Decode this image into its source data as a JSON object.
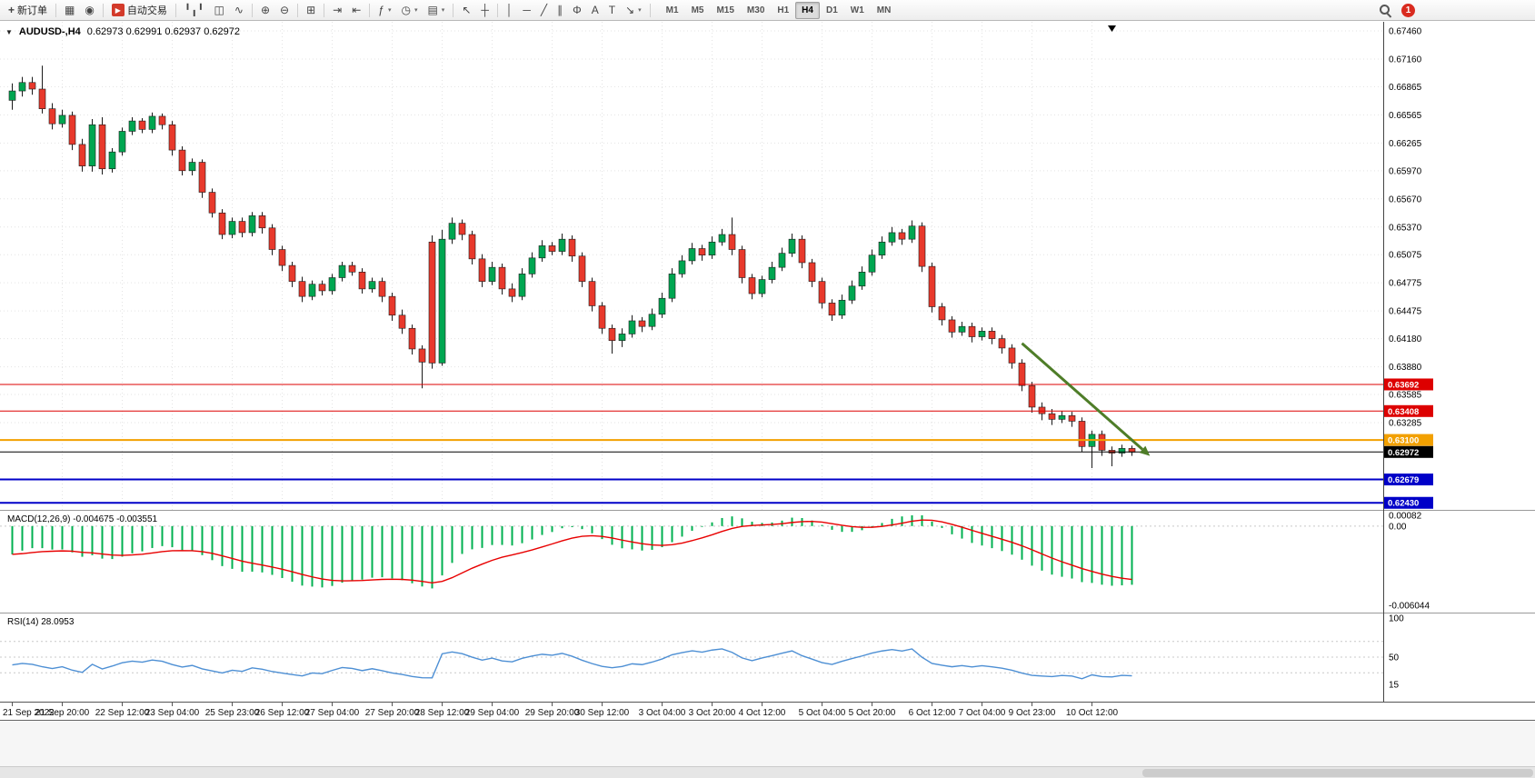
{
  "toolbar": {
    "new_order_label": "新订单",
    "autotrading_label": "自动交易",
    "badge_count": "1",
    "timeframes": [
      "M1",
      "M5",
      "M15",
      "M30",
      "H1",
      "H4",
      "D1",
      "W1",
      "MN"
    ],
    "active_timeframe": "H4",
    "groups": [
      [
        "bar-chart",
        "candlestick",
        "line-chart"
      ],
      [
        "zoom-in",
        "zoom-out"
      ],
      [
        "tile-windows"
      ],
      [
        "auto-scroll",
        "chart-shift"
      ],
      [
        "indicators",
        "periods",
        "templates"
      ],
      [
        "cursor",
        "crosshair"
      ],
      [
        "vertical-line",
        "horizontal-line",
        "trendline",
        "channel",
        "fibonacci",
        "text",
        "text-label",
        "arrows"
      ]
    ],
    "caret_buttons": [
      "indicators",
      "periods",
      "templates",
      "arrows"
    ]
  },
  "icons": {
    "caret": "▾",
    "collapse": "▼",
    "new-order": "+",
    "chart-window": "▦",
    "market-watch": "◉",
    "autotrading": "▶",
    "bar-chart": "╹╻╹",
    "candlestick": "◫",
    "line-chart": "∿",
    "zoom-in": "⊕",
    "zoom-out": "⊖",
    "tile-windows": "⊞",
    "auto-scroll": "⇥",
    "chart-shift": "⇤",
    "indicators": "ƒ",
    "periods": "◷",
    "templates": "▤",
    "cursor": "↖",
    "crosshair": "┼",
    "vertical-line": "│",
    "horizontal-line": "─",
    "trendline": "╱",
    "channel": "∥",
    "fibonacci": "Φ",
    "text": "A",
    "text-label": "T",
    "arrows": "↘"
  },
  "chart": {
    "header": {
      "symbol": "AUDUSD-,H4",
      "ohlc": "0.62973 0.62991 0.62937 0.62972"
    },
    "price_axis_labels": [
      "0.67460",
      "0.67160",
      "0.66865",
      "0.66565",
      "0.66265",
      "0.65970",
      "0.65670",
      "0.65370",
      "0.65075",
      "0.64775",
      "0.64475",
      "0.64180",
      "0.63880",
      "0.63585",
      "0.63285"
    ]
  },
  "chart_data": {
    "type": "candlestick",
    "symbol": "AUDUSD",
    "timeframe": "H4",
    "ohlc": [
      [
        0.6672,
        0.669,
        0.6662,
        0.6682
      ],
      [
        0.6682,
        0.6697,
        0.6676,
        0.6691
      ],
      [
        0.6691,
        0.6697,
        0.6678,
        0.6684
      ],
      [
        0.6684,
        0.6709,
        0.6658,
        0.6663
      ],
      [
        0.6663,
        0.6669,
        0.6641,
        0.6647
      ],
      [
        0.6647,
        0.6662,
        0.6643,
        0.6656
      ],
      [
        0.6656,
        0.666,
        0.6619,
        0.6625
      ],
      [
        0.6625,
        0.6631,
        0.6596,
        0.6602
      ],
      [
        0.6602,
        0.6652,
        0.6596,
        0.6646
      ],
      [
        0.6646,
        0.6654,
        0.6593,
        0.6599
      ],
      [
        0.6599,
        0.6621,
        0.6595,
        0.6617
      ],
      [
        0.6617,
        0.6643,
        0.6613,
        0.6639
      ],
      [
        0.6639,
        0.6654,
        0.6635,
        0.665
      ],
      [
        0.665,
        0.6653,
        0.6637,
        0.6641
      ],
      [
        0.6641,
        0.6659,
        0.6637,
        0.6655
      ],
      [
        0.6655,
        0.6658,
        0.6641,
        0.6646
      ],
      [
        0.6646,
        0.665,
        0.6613,
        0.6619
      ],
      [
        0.6619,
        0.6623,
        0.6592,
        0.6597
      ],
      [
        0.6597,
        0.661,
        0.6592,
        0.6606
      ],
      [
        0.6606,
        0.6609,
        0.6568,
        0.6574
      ],
      [
        0.6574,
        0.6578,
        0.6547,
        0.6552
      ],
      [
        0.6552,
        0.6556,
        0.6524,
        0.6529
      ],
      [
        0.6529,
        0.6547,
        0.6525,
        0.6543
      ],
      [
        0.6543,
        0.6547,
        0.6526,
        0.6531
      ],
      [
        0.6531,
        0.6553,
        0.6527,
        0.6549
      ],
      [
        0.6549,
        0.6553,
        0.653,
        0.6536
      ],
      [
        0.6536,
        0.654,
        0.6507,
        0.6513
      ],
      [
        0.6513,
        0.6517,
        0.649,
        0.6496
      ],
      [
        0.6496,
        0.65,
        0.6473,
        0.6479
      ],
      [
        0.6479,
        0.6484,
        0.6457,
        0.6463
      ],
      [
        0.6463,
        0.648,
        0.6459,
        0.6476
      ],
      [
        0.6476,
        0.648,
        0.6464,
        0.6469
      ],
      [
        0.6469,
        0.6487,
        0.6465,
        0.6483
      ],
      [
        0.6483,
        0.65,
        0.6479,
        0.6496
      ],
      [
        0.6496,
        0.65,
        0.6485,
        0.6489
      ],
      [
        0.6489,
        0.6493,
        0.6466,
        0.6471
      ],
      [
        0.6471,
        0.6483,
        0.6467,
        0.6479
      ],
      [
        0.6479,
        0.6483,
        0.6457,
        0.6463
      ],
      [
        0.6463,
        0.6467,
        0.6437,
        0.6443
      ],
      [
        0.6443,
        0.6449,
        0.6423,
        0.6429
      ],
      [
        0.6429,
        0.6433,
        0.6401,
        0.6407
      ],
      [
        0.6407,
        0.6411,
        0.6365,
        0.6393
      ],
      [
        0.6521,
        0.6528,
        0.6386,
        0.6392
      ],
      [
        0.6392,
        0.6534,
        0.6389,
        0.6524
      ],
      [
        0.6524,
        0.6547,
        0.6519,
        0.6541
      ],
      [
        0.6541,
        0.6545,
        0.6523,
        0.6529
      ],
      [
        0.6529,
        0.6533,
        0.6497,
        0.6503
      ],
      [
        0.6503,
        0.6508,
        0.6473,
        0.6479
      ],
      [
        0.6479,
        0.65,
        0.6475,
        0.6494
      ],
      [
        0.6494,
        0.6498,
        0.6465,
        0.6471
      ],
      [
        0.6471,
        0.6477,
        0.6457,
        0.6463
      ],
      [
        0.6463,
        0.6493,
        0.6459,
        0.6487
      ],
      [
        0.6487,
        0.651,
        0.6483,
        0.6504
      ],
      [
        0.6504,
        0.6523,
        0.65,
        0.6517
      ],
      [
        0.6517,
        0.6521,
        0.6507,
        0.6511
      ],
      [
        0.6511,
        0.653,
        0.6507,
        0.6524
      ],
      [
        0.6524,
        0.6528,
        0.65,
        0.6506
      ],
      [
        0.6506,
        0.651,
        0.6473,
        0.6479
      ],
      [
        0.6479,
        0.6483,
        0.6447,
        0.6453
      ],
      [
        0.6453,
        0.6457,
        0.6423,
        0.6429
      ],
      [
        0.6429,
        0.6433,
        0.6402,
        0.6416
      ],
      [
        0.6416,
        0.6429,
        0.6409,
        0.6423
      ],
      [
        0.6423,
        0.6443,
        0.6419,
        0.6437
      ],
      [
        0.6437,
        0.6441,
        0.6425,
        0.6431
      ],
      [
        0.6431,
        0.645,
        0.6427,
        0.6444
      ],
      [
        0.6444,
        0.6467,
        0.644,
        0.6461
      ],
      [
        0.6461,
        0.6493,
        0.6457,
        0.6487
      ],
      [
        0.6487,
        0.6507,
        0.6483,
        0.6501
      ],
      [
        0.6501,
        0.652,
        0.6497,
        0.6514
      ],
      [
        0.6514,
        0.6518,
        0.6501,
        0.6507
      ],
      [
        0.6507,
        0.6527,
        0.6503,
        0.6521
      ],
      [
        0.6521,
        0.6535,
        0.6517,
        0.6529
      ],
      [
        0.6529,
        0.6547,
        0.6507,
        0.6513
      ],
      [
        0.6513,
        0.6517,
        0.6477,
        0.6483
      ],
      [
        0.6483,
        0.6487,
        0.646,
        0.6466
      ],
      [
        0.6466,
        0.6485,
        0.6462,
        0.6481
      ],
      [
        0.6481,
        0.65,
        0.6477,
        0.6494
      ],
      [
        0.6494,
        0.6515,
        0.649,
        0.6509
      ],
      [
        0.6509,
        0.653,
        0.6505,
        0.6524
      ],
      [
        0.6524,
        0.6528,
        0.6493,
        0.6499
      ],
      [
        0.6499,
        0.6503,
        0.6473,
        0.6479
      ],
      [
        0.6479,
        0.6483,
        0.645,
        0.6456
      ],
      [
        0.6456,
        0.646,
        0.6437,
        0.6443
      ],
      [
        0.6443,
        0.6465,
        0.6439,
        0.6459
      ],
      [
        0.6459,
        0.648,
        0.6455,
        0.6474
      ],
      [
        0.6474,
        0.6495,
        0.647,
        0.6489
      ],
      [
        0.6489,
        0.6513,
        0.6485,
        0.6507
      ],
      [
        0.6507,
        0.6527,
        0.6503,
        0.6521
      ],
      [
        0.6521,
        0.6537,
        0.6517,
        0.6531
      ],
      [
        0.6531,
        0.6535,
        0.6518,
        0.6524
      ],
      [
        0.6524,
        0.6544,
        0.652,
        0.6538
      ],
      [
        0.6538,
        0.6542,
        0.6489,
        0.6495
      ],
      [
        0.6495,
        0.6499,
        0.6446,
        0.6452
      ],
      [
        0.6452,
        0.6456,
        0.6432,
        0.6438
      ],
      [
        0.6438,
        0.6442,
        0.6419,
        0.6425
      ],
      [
        0.6425,
        0.6436,
        0.6421,
        0.6431
      ],
      [
        0.6431,
        0.6435,
        0.6414,
        0.642
      ],
      [
        0.642,
        0.643,
        0.6416,
        0.6426
      ],
      [
        0.6426,
        0.643,
        0.6412,
        0.6418
      ],
      [
        0.6418,
        0.6422,
        0.6402,
        0.6408
      ],
      [
        0.6408,
        0.6412,
        0.6386,
        0.6392
      ],
      [
        0.6392,
        0.6396,
        0.6362,
        0.6368
      ],
      [
        0.6368,
        0.6372,
        0.6339,
        0.6345
      ],
      [
        0.6345,
        0.635,
        0.6331,
        0.6338
      ],
      [
        0.6338,
        0.6343,
        0.6326,
        0.6332
      ],
      [
        0.6332,
        0.6341,
        0.6328,
        0.6336
      ],
      [
        0.6336,
        0.634,
        0.6324,
        0.633
      ],
      [
        0.633,
        0.6334,
        0.6297,
        0.6303
      ],
      [
        0.6303,
        0.632,
        0.628,
        0.6316
      ],
      [
        0.6316,
        0.632,
        0.6293,
        0.6299
      ],
      [
        0.6299,
        0.6303,
        0.6282,
        0.6296
      ],
      [
        0.6296,
        0.6305,
        0.6292,
        0.6301
      ],
      [
        0.6301,
        0.6304,
        0.6293,
        0.6297
      ]
    ],
    "time_labels": [
      {
        "t": "21 Sep 2022",
        "i": 0
      },
      {
        "t": "21 Sep 20:00",
        "i": 5
      },
      {
        "t": "22 Sep 12:00",
        "i": 11
      },
      {
        "t": "23 Sep 04:00",
        "i": 16
      },
      {
        "t": "25 Sep 23:00",
        "i": 22
      },
      {
        "t": "26 Sep 12:00",
        "i": 27
      },
      {
        "t": "27 Sep 04:00",
        "i": 32
      },
      {
        "t": "27 Sep 20:00",
        "i": 38
      },
      {
        "t": "28 Sep 12:00",
        "i": 43
      },
      {
        "t": "29 Sep 04:00",
        "i": 48
      },
      {
        "t": "29 Sep 20:00",
        "i": 54
      },
      {
        "t": "30 Sep 12:00",
        "i": 59
      },
      {
        "t": "3 Oct 04:00",
        "i": 65
      },
      {
        "t": "3 Oct 20:00",
        "i": 70
      },
      {
        "t": "4 Oct 12:00",
        "i": 75
      },
      {
        "t": "5 Oct 04:00",
        "i": 81
      },
      {
        "t": "5 Oct 20:00",
        "i": 86
      },
      {
        "t": "6 Oct 12:00",
        "i": 92
      },
      {
        "t": "7 Oct 04:00",
        "i": 97
      },
      {
        "t": "9 Oct 23:00",
        "i": 102
      },
      {
        "t": "10 Oct 12:00",
        "i": 108
      }
    ],
    "levels": [
      {
        "label": "0.63692",
        "price": 0.63692,
        "color": "#dd0000",
        "width": 1
      },
      {
        "label": "0.63408",
        "price": 0.63408,
        "color": "#dd0000",
        "width": 1
      },
      {
        "label": "0.63100",
        "price": 0.631,
        "color": "#f2a000",
        "width": 2
      },
      {
        "label": "0.62972",
        "price": 0.62972,
        "color": "#000000",
        "width": 1
      },
      {
        "label": "0.62679",
        "price": 0.62679,
        "color": "#0000c8",
        "width": 2
      },
      {
        "label": "0.62430",
        "price": 0.6243,
        "color": "#0000c8",
        "width": 2
      }
    ],
    "arrow": {
      "from_index": 101,
      "from_price": 0.6413,
      "to_index": 113.8,
      "to_price": 0.6293,
      "color": "#4e7d28",
      "width": 3
    }
  },
  "macd": {
    "label": "MACD(12,26,9)",
    "values": "-0.004675 -0.003551",
    "axis_labels": [
      "0.00082",
      "0.00",
      "-0.006044"
    ],
    "scale_max": 0.00082,
    "scale_min": -0.006044
  },
  "rsi": {
    "label": "RSI(14)",
    "value": "28.0953",
    "axis_labels": [
      "100",
      "50",
      "15"
    ],
    "levels": [
      70,
      50,
      30
    ]
  },
  "colors": {
    "bull": "#00a651",
    "bear": "#e8392c",
    "candle_border": "#1a1a1a",
    "grid": "#e3e3e3",
    "axis_line": "#444444",
    "separator": "#9a9a9a",
    "macd_bar": "#00b050",
    "macd_signal": "#e80000",
    "rsi_line": "#4d8fd4"
  }
}
